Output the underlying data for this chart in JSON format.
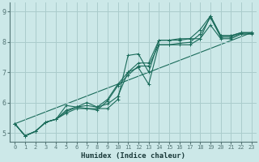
{
  "title": "",
  "xlabel": "Humidex (Indice chaleur)",
  "xlim": [
    -0.5,
    23.5
  ],
  "ylim": [
    4.7,
    9.3
  ],
  "yticks": [
    5,
    6,
    7,
    8,
    9
  ],
  "xticks": [
    0,
    1,
    2,
    3,
    4,
    5,
    6,
    7,
    8,
    9,
    10,
    11,
    12,
    13,
    14,
    15,
    16,
    17,
    18,
    19,
    20,
    21,
    22,
    23
  ],
  "bg_color": "#cce8e8",
  "grid_color": "#aacccc",
  "line_color": "#1a6b5a",
  "axis_color": "#557777",
  "lines": [
    [
      5.3,
      4.9,
      5.05,
      5.35,
      5.45,
      5.9,
      5.85,
      5.8,
      5.8,
      5.8,
      6.1,
      7.55,
      7.6,
      7.0,
      8.05,
      8.05,
      8.05,
      8.1,
      8.1,
      8.85,
      8.2,
      8.2,
      8.3,
      8.3
    ],
    [
      5.3,
      4.9,
      5.05,
      5.35,
      5.45,
      5.75,
      5.85,
      6.0,
      5.85,
      6.1,
      6.6,
      7.0,
      7.3,
      7.3,
      8.05,
      8.05,
      8.1,
      8.1,
      8.4,
      8.85,
      8.2,
      8.2,
      8.3,
      8.3
    ],
    [
      5.3,
      4.9,
      5.05,
      5.35,
      5.45,
      5.65,
      5.8,
      5.8,
      5.75,
      6.05,
      6.55,
      6.9,
      7.2,
      7.2,
      7.9,
      7.9,
      7.95,
      7.98,
      8.25,
      8.8,
      8.15,
      8.15,
      8.28,
      8.28
    ],
    [
      5.3,
      4.9,
      5.05,
      5.35,
      5.45,
      5.7,
      5.85,
      5.9,
      5.85,
      5.95,
      6.2,
      7.0,
      7.15,
      6.6,
      7.9,
      7.9,
      7.9,
      7.9,
      8.1,
      8.55,
      8.1,
      8.1,
      8.25,
      8.25
    ]
  ],
  "reg_line": [
    [
      0,
      23
    ],
    [
      5.3,
      8.3
    ]
  ]
}
